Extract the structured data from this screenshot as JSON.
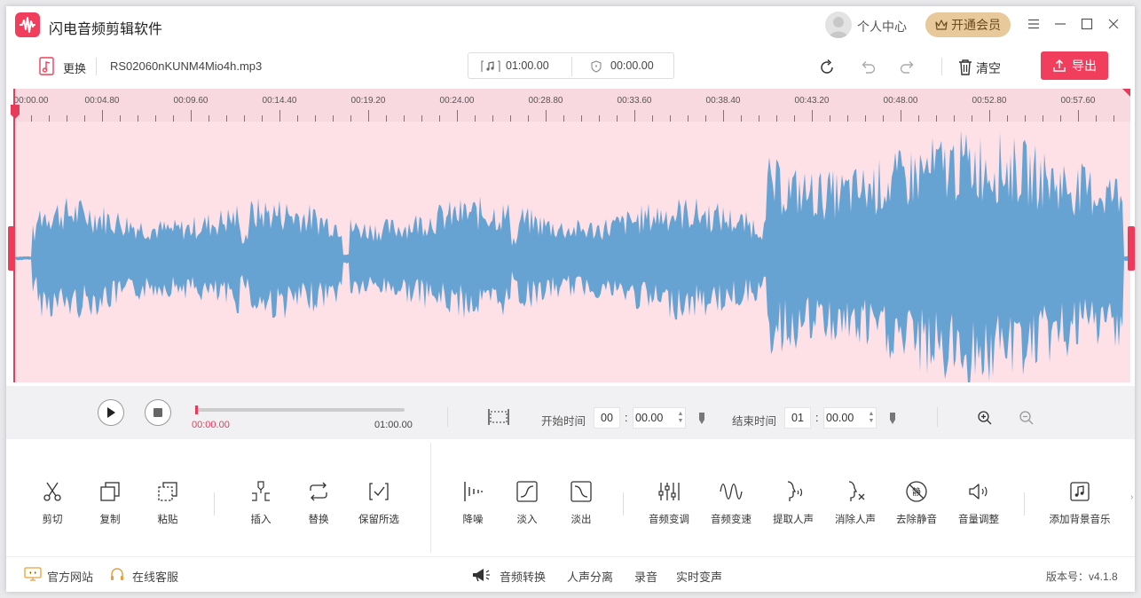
{
  "app": {
    "title": "闪电音频剪辑软件"
  },
  "header": {
    "user_center": "个人中心",
    "vip_label": "开通会员"
  },
  "toolbar": {
    "replace_label": "更换",
    "file_name": "RS02060nKUNM4Mio4h.mp3",
    "duration": "01:00.00",
    "selection": "00:00.00",
    "clear_label": "清空",
    "export_label": "导出"
  },
  "ruler": {
    "labels": [
      "00:00.00",
      "00:04.80",
      "00:09.60",
      "00:14.40",
      "00:19.20",
      "00:24.00",
      "00:28.80",
      "00:33.60",
      "00:38.40",
      "00:43.20",
      "00:48.00",
      "00:52.80",
      "00:57.60"
    ]
  },
  "playback": {
    "current": "00:00.00",
    "total": "01:00.00",
    "progress": 0,
    "start_label": "开始时间",
    "start_min": "00",
    "start_sec": "00.00",
    "end_label": "结束时间",
    "end_min": "01",
    "end_sec": "00.00"
  },
  "tools": {
    "cut": "剪切",
    "copy": "复制",
    "paste": "粘贴",
    "insert": "插入",
    "replace": "替换",
    "keep": "保留所选",
    "denoise": "降噪",
    "fade_in": "淡入",
    "fade_out": "淡出",
    "pitch": "音频变调",
    "speed": "音频变速",
    "extract_vocal": "提取人声",
    "remove_vocal": "消除人声",
    "remove_silence": "去除静音",
    "volume": "音量调整",
    "bg_music": "添加背景音乐"
  },
  "footer": {
    "website": "官方网站",
    "support": "在线客服",
    "convert": "音频转换",
    "separate": "人声分离",
    "record": "录音",
    "voice_change": "实时变声",
    "version": "版本号：v4.1.8"
  },
  "colors": {
    "accent": "#f03e5c",
    "wave": "#67a3d2",
    "wave_bg": "#fde1e7",
    "vip": "#e8c99b"
  }
}
